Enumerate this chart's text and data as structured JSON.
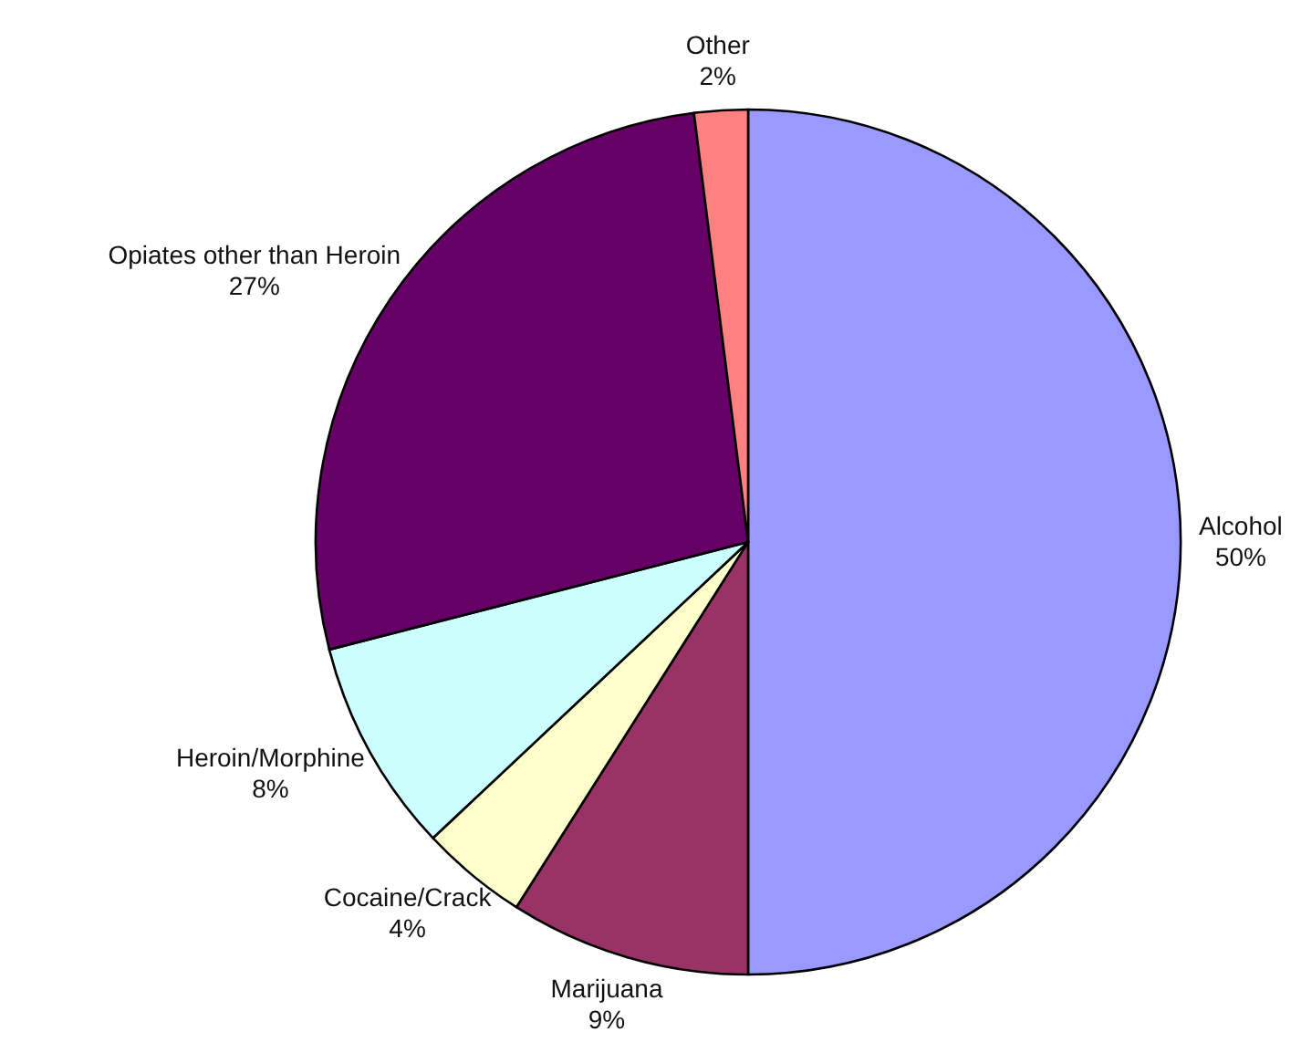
{
  "chart_data": {
    "type": "pie",
    "categories": [
      "Alcohol",
      "Marijuana",
      "Cocaine/Crack",
      "Heroin/Morphine",
      "Opiates other than Heroin",
      "Other"
    ],
    "values": [
      50,
      9,
      4,
      8,
      27,
      2
    ],
    "value_labels": [
      "50%",
      "9%",
      "4%",
      "8%",
      "27%",
      "2%"
    ],
    "colors": [
      "#9999ff",
      "#993366",
      "#ffffcc",
      "#ccffff",
      "#660066",
      "#ff8080"
    ]
  }
}
